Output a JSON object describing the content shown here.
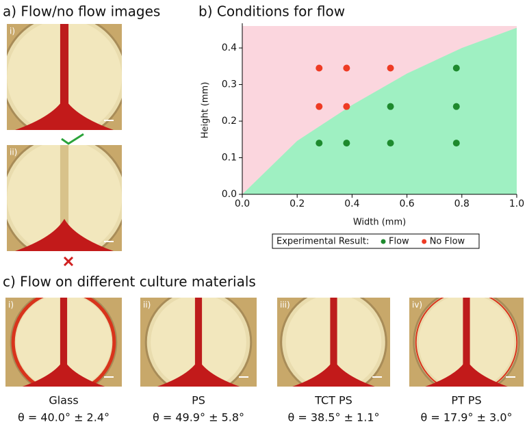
{
  "panel_a": {
    "title": "a) Flow/no flow images",
    "images": [
      {
        "label": "i)"
      },
      {
        "label": "ii)"
      }
    ]
  },
  "chart_data": {
    "type": "scatter",
    "title": "b) Conditions for flow",
    "xlabel": "Width (mm)",
    "ylabel": "Height (mm)",
    "xlim": [
      0,
      1.0
    ],
    "ylim": [
      0,
      0.46
    ],
    "xticks": [
      {
        "value": 0,
        "label": "0.0"
      },
      0.2,
      0.4,
      0.6,
      0.8,
      {
        "value": 1,
        "label": "1.0"
      }
    ],
    "yticks": [
      {
        "value": 0,
        "label": "0.0"
      },
      0.1,
      0.2,
      0.3,
      0.4
    ],
    "regions": {
      "x": [
        0,
        0.2,
        0.4,
        0.6,
        0.8,
        1.0
      ],
      "boundary": [
        0,
        0.146,
        0.244,
        0.33,
        0.4,
        0.455
      ],
      "below_color": "#9ff0c2",
      "above_color": "#fbd6de"
    },
    "series": [
      {
        "name": "Flow",
        "color": "#1e8a2e",
        "x": [
          0.28,
          0.38,
          0.54,
          0.78,
          0.54,
          0.78,
          0.78
        ],
        "values": [
          0.14,
          0.14,
          0.14,
          0.14,
          0.24,
          0.24,
          0.345
        ]
      },
      {
        "name": "No Flow",
        "color": "#ee3b24",
        "x": [
          0.28,
          0.38,
          0.54,
          0.28,
          0.38
        ],
        "values": [
          0.345,
          0.345,
          0.345,
          0.24,
          0.24
        ]
      }
    ],
    "legend_title": "Experimental Result:",
    "legend": "bottom"
  },
  "panel_c": {
    "title": "c) Flow on different culture materials",
    "images": [
      {
        "label": "i)",
        "material": "Glass",
        "contact_angle": "θ = 40.0° ± 2.4°"
      },
      {
        "label": "ii)",
        "material": "PS",
        "contact_angle": "θ = 49.9° ± 5.8°"
      },
      {
        "label": "iii)",
        "material": "TCT PS",
        "contact_angle": "θ = 38.5° ± 1.1°"
      },
      {
        "label": "iv)",
        "material": "PT  PS",
        "contact_angle": "θ = 17.9° ± 3.0°"
      }
    ]
  }
}
